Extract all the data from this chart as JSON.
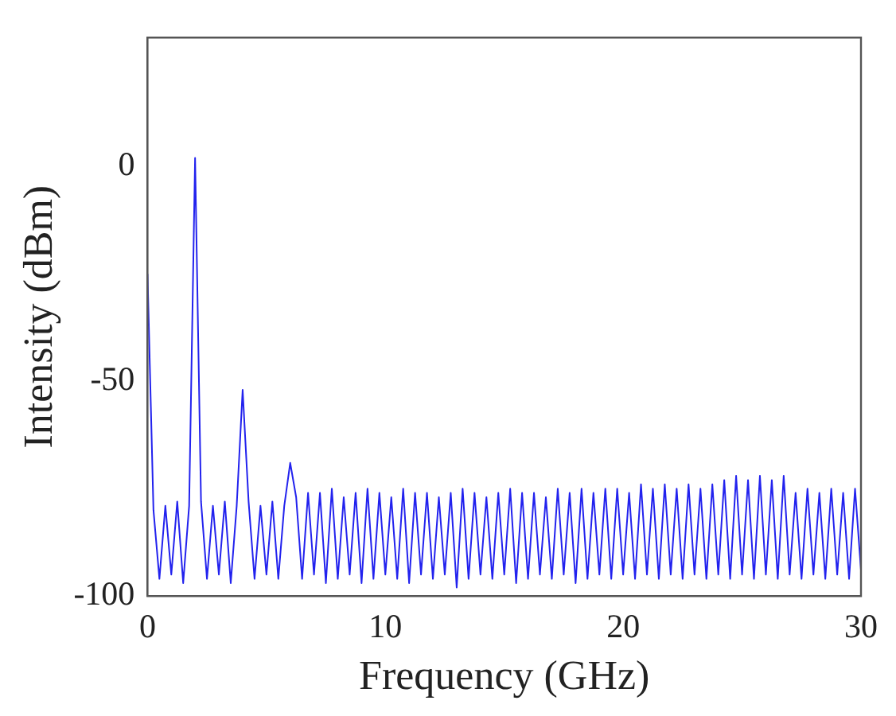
{
  "chart_data": {
    "type": "line",
    "xlabel": "Frequency (GHz)",
    "ylabel": "Intensity (dBm)",
    "xlim": [
      0,
      30
    ],
    "xticks": [
      0,
      10,
      20,
      30
    ],
    "ylim": [
      -100,
      30
    ],
    "yticks": [
      -100,
      -50,
      0
    ],
    "grid": false,
    "legend": false,
    "marker": "none",
    "line_style": "solid",
    "series": [
      {
        "color": "#2222ee",
        "x": [
          0,
          0.25,
          0.5,
          0.75,
          1,
          1.25,
          1.5,
          1.75,
          2,
          2.25,
          2.5,
          2.75,
          3,
          3.25,
          3.5,
          3.75,
          4,
          4.25,
          4.5,
          4.75,
          5,
          5.25,
          5.5,
          5.75,
          6,
          6.25,
          6.5,
          6.75,
          7,
          7.25,
          7.5,
          7.75,
          8,
          8.25,
          8.5,
          8.75,
          9,
          9.25,
          9.5,
          9.75,
          10,
          10.25,
          10.5,
          10.75,
          11,
          11.25,
          11.5,
          11.75,
          12,
          12.25,
          12.5,
          12.75,
          13,
          13.25,
          13.5,
          13.75,
          14,
          14.25,
          14.5,
          14.75,
          15,
          15.25,
          15.5,
          15.75,
          16,
          16.25,
          16.5,
          16.75,
          17,
          17.25,
          17.5,
          17.75,
          18,
          18.25,
          18.5,
          18.75,
          19,
          19.25,
          19.5,
          19.75,
          20,
          20.25,
          20.5,
          20.75,
          21,
          21.25,
          21.5,
          21.75,
          22,
          22.25,
          22.5,
          22.75,
          23,
          23.25,
          23.5,
          23.75,
          24,
          24.25,
          24.5,
          24.75,
          25,
          25.25,
          25.5,
          25.75,
          26,
          26.25,
          26.5,
          26.75,
          27,
          27.25,
          27.5,
          27.75,
          28,
          28.25,
          28.5,
          28.75,
          29,
          29.25,
          29.5,
          29.75,
          30
        ],
        "values": [
          -25,
          -80,
          -96,
          -79,
          -95,
          -78,
          -97,
          -79,
          2,
          -78,
          -96,
          -79,
          -95,
          -78,
          -97,
          -79,
          -52,
          -78,
          -96,
          -79,
          -95,
          -78,
          -96,
          -79,
          -69,
          -77,
          -96,
          -76,
          -95,
          -76,
          -97,
          -75,
          -96,
          -77,
          -95,
          -76,
          -97,
          -75,
          -96,
          -76,
          -95,
          -77,
          -96,
          -75,
          -97,
          -76,
          -95,
          -76,
          -96,
          -77,
          -95,
          -76,
          -98,
          -75,
          -96,
          -76,
          -95,
          -77,
          -96,
          -76,
          -95,
          -75,
          -97,
          -76,
          -96,
          -76,
          -95,
          -77,
          -96,
          -75,
          -95,
          -76,
          -97,
          -75,
          -96,
          -76,
          -95,
          -75,
          -96,
          -75,
          -95,
          -76,
          -96,
          -74,
          -95,
          -75,
          -96,
          -74,
          -95,
          -75,
          -96,
          -74,
          -95,
          -75,
          -96,
          -74,
          -95,
          -73,
          -96,
          -72,
          -95,
          -73,
          -96,
          -72,
          -95,
          -73,
          -96,
          -72,
          -95,
          -76,
          -96,
          -75,
          -95,
          -76,
          -96,
          -75,
          -95,
          -76,
          -96,
          -75,
          -94
        ]
      }
    ]
  }
}
